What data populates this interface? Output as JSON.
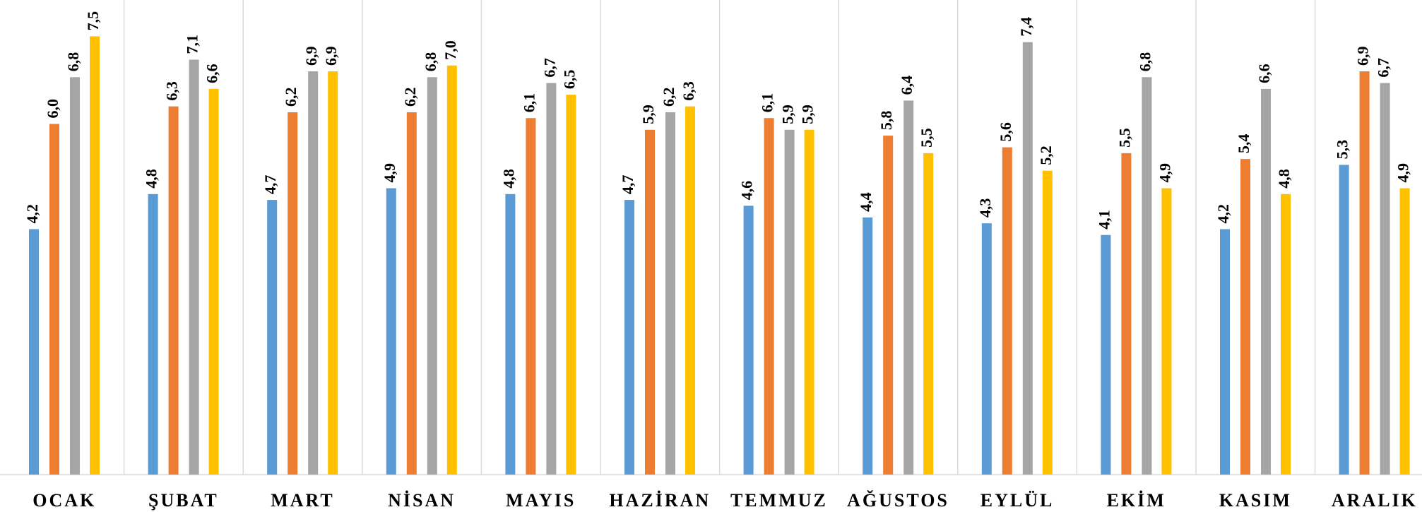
{
  "chart_data": {
    "type": "bar",
    "categories": [
      "OCAK",
      "ŞUBAT",
      "MART",
      "NİSAN",
      "MAYIS",
      "HAZİRAN",
      "TEMMUZ",
      "AĞUSTOS",
      "EYLÜL",
      "EKİM",
      "KASIM",
      "ARALIK"
    ],
    "series": [
      {
        "color": "#5b9bd5",
        "values": [
          4.2,
          4.8,
          4.7,
          4.9,
          4.8,
          4.7,
          4.6,
          4.4,
          4.3,
          4.1,
          4.2,
          5.3
        ],
        "value_labels": [
          "4,2",
          "4,8",
          "4,7",
          "4,9",
          "4,8",
          "4,7",
          "4,6",
          "4,4",
          "4,3",
          "4,1",
          "4,2",
          "5,3"
        ]
      },
      {
        "color": "#ed7d31",
        "values": [
          6.0,
          6.3,
          6.2,
          6.2,
          6.1,
          5.9,
          6.1,
          5.8,
          5.6,
          5.5,
          5.4,
          6.9
        ],
        "value_labels": [
          "6,0",
          "6,3",
          "6,2",
          "6,2",
          "6,1",
          "5,9",
          "6,1",
          "5,8",
          "5,6",
          "5,5",
          "5,4",
          "6,9"
        ]
      },
      {
        "color": "#a5a5a5",
        "values": [
          6.8,
          7.1,
          6.9,
          6.8,
          6.7,
          6.2,
          5.9,
          6.4,
          7.4,
          6.8,
          6.6,
          6.7
        ],
        "value_labels": [
          "6,8",
          "7,1",
          "6,9",
          "6,8",
          "6,7",
          "6,2",
          "5,9",
          "6,4",
          "7,4",
          "6,8",
          "6,6",
          "6,7"
        ]
      },
      {
        "color": "#ffc000",
        "values": [
          7.5,
          6.6,
          6.9,
          7.0,
          6.5,
          6.3,
          5.9,
          5.5,
          5.2,
          4.9,
          4.8,
          4.9
        ],
        "value_labels": [
          "7,5",
          "6,6",
          "6,9",
          "7,0",
          "6,5",
          "6,3",
          "5,9",
          "5,5",
          "5,2",
          "4,9",
          "4,8",
          "4,9"
        ]
      }
    ],
    "ylim": [
      0,
      8
    ]
  }
}
